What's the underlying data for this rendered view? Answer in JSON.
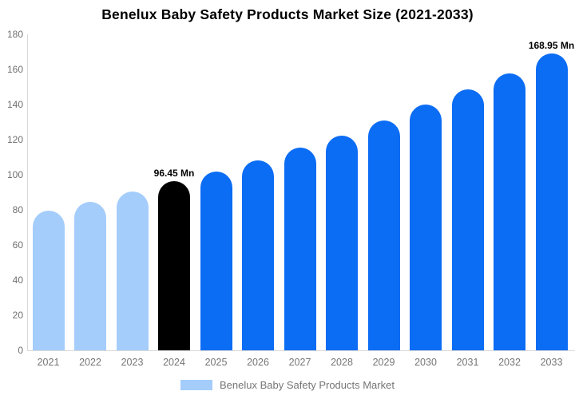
{
  "title": "Benelux Baby Safety Products Market Size (2021-2033)",
  "chart_data": {
    "type": "bar",
    "title": "Benelux Baby Safety Products Market Size (2021-2033)",
    "xlabel": "",
    "ylabel": "",
    "categories": [
      "2021",
      "2022",
      "2023",
      "2024",
      "2025",
      "2026",
      "2027",
      "2028",
      "2029",
      "2030",
      "2031",
      "2032",
      "2033"
    ],
    "values": [
      79.4,
      84.6,
      90.3,
      96.45,
      102.0,
      108.3,
      115.6,
      122.3,
      131.0,
      140.0,
      148.6,
      157.7,
      168.95
    ],
    "unit": "Mn",
    "point_labels": [
      "",
      "",
      "",
      "96.45 Mn",
      "",
      "",
      "",
      "",
      "",
      "",
      "",
      "",
      "168.95 Mn"
    ],
    "bar_colors": [
      "#a4cdfb",
      "#a4cdfb",
      "#a4cdfb",
      "#000000",
      "#0b6cf4",
      "#0b6cf4",
      "#0b6cf4",
      "#0b6cf4",
      "#0b6cf4",
      "#0b6cf4",
      "#0b6cf4",
      "#0b6cf4",
      "#0b6cf4"
    ],
    "ylim": [
      0,
      180
    ],
    "yticks": [
      0,
      20,
      40,
      60,
      80,
      100,
      120,
      140,
      160,
      180
    ],
    "grid": false,
    "legend_position": "bottom",
    "legend": [
      {
        "label": "Benelux Baby Safety Products Market",
        "color": "#a4cdfb"
      }
    ]
  },
  "colors": {
    "historical_bar": "#a4cdfb",
    "base_year_bar": "#000000",
    "forecast_bar": "#0b6cf4",
    "axis_line": "#d9d9d9",
    "axis_text": "#757575",
    "title_text": "#000000",
    "background": "#ffffff"
  }
}
